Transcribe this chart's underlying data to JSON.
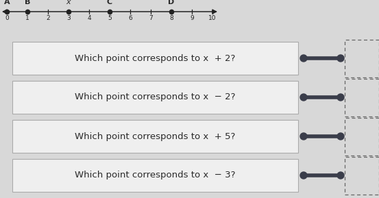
{
  "number_line": {
    "xmin": -0.3,
    "xmax": 10.5,
    "ticks": [
      0,
      1,
      2,
      3,
      4,
      5,
      6,
      7,
      8,
      9,
      10
    ],
    "points": [
      {
        "label": "A",
        "x": 0
      },
      {
        "label": "B",
        "x": 1
      },
      {
        "label": "x",
        "x": 3
      },
      {
        "label": "C",
        "x": 5
      },
      {
        "label": "D",
        "x": 8
      }
    ]
  },
  "questions": [
    "Which point corresponds to x  + 2?",
    "Which point corresponds to x  − 2?",
    "Which point corresponds to x  + 5?",
    "Which point corresponds to x  − 3?"
  ],
  "bg_color": "#d8d8d8",
  "box_facecolor": "#efefef",
  "box_edgecolor": "#aaaaaa",
  "text_color": "#2a2a2a",
  "nl_color": "#222222",
  "point_color": "#222222",
  "answer_color": "#3a3d4a",
  "dashed_color": "#666666"
}
